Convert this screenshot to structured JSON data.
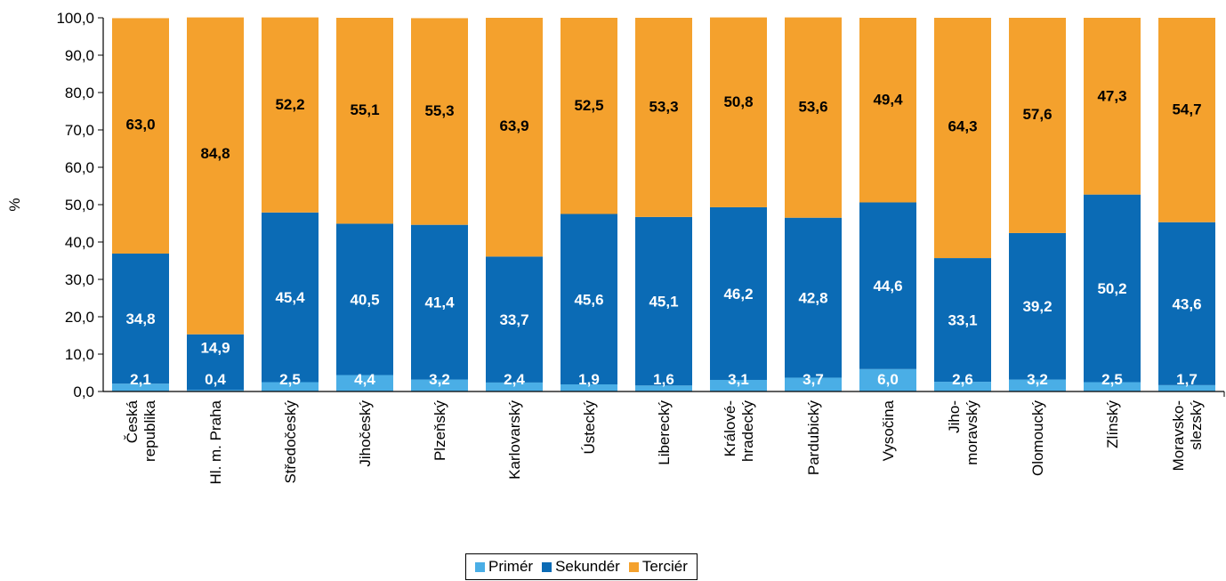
{
  "chart_data": {
    "type": "bar",
    "stacked": true,
    "ylabel": "%",
    "ylim": [
      0,
      100
    ],
    "yticks": [
      "0,0",
      "10,0",
      "20,0",
      "30,0",
      "40,0",
      "50,0",
      "60,0",
      "70,0",
      "80,0",
      "90,0",
      "100,0"
    ],
    "categories": [
      [
        "Česká",
        "republika"
      ],
      [
        "Hl. m. Praha"
      ],
      [
        "Středočeský"
      ],
      [
        "Jihočeský"
      ],
      [
        "Plzeňský"
      ],
      [
        "Karlovarský"
      ],
      [
        "Ústecký"
      ],
      [
        "Liberecký"
      ],
      [
        "Králové-",
        "hradecký"
      ],
      [
        "Pardubický"
      ],
      [
        "Vysočina"
      ],
      [
        "Jiho-",
        "moravský"
      ],
      [
        "Olomoucký"
      ],
      [
        "Zlínský"
      ],
      [
        "Moravsko-",
        "slezský"
      ]
    ],
    "series": [
      {
        "name": "Primér",
        "color": "#4aaee6",
        "label_color": "#ffffff",
        "values": [
          2.1,
          0.4,
          2.5,
          4.4,
          3.2,
          2.4,
          1.9,
          1.6,
          3.1,
          3.7,
          6.0,
          2.6,
          3.2,
          2.5,
          1.7
        ],
        "labels": [
          "2,1",
          "0,4",
          "2,5",
          "4,4",
          "3,2",
          "2,4",
          "1,9",
          "1,6",
          "3,1",
          "3,7",
          "6,0",
          "2,6",
          "3,2",
          "2,5",
          "1,7"
        ]
      },
      {
        "name": "Sekundér",
        "color": "#0b6bb5",
        "label_color": "#ffffff",
        "values": [
          34.8,
          14.9,
          45.4,
          40.5,
          41.4,
          33.7,
          45.6,
          45.1,
          46.2,
          42.8,
          44.6,
          33.1,
          39.2,
          50.2,
          43.6
        ],
        "labels": [
          "34,8",
          "14,9",
          "45,4",
          "40,5",
          "41,4",
          "33,7",
          "45,6",
          "45,1",
          "46,2",
          "42,8",
          "44,6",
          "33,1",
          "39,2",
          "50,2",
          "43,6"
        ]
      },
      {
        "name": "Terciér",
        "color": "#f4a12d",
        "label_color": "#000000",
        "values": [
          63.0,
          84.8,
          52.2,
          55.1,
          55.3,
          63.9,
          52.5,
          53.3,
          50.8,
          53.6,
          49.4,
          64.3,
          57.6,
          47.3,
          54.7
        ],
        "labels": [
          "63,0",
          "84,8",
          "52,2",
          "55,1",
          "55,3",
          "63,9",
          "52,5",
          "53,3",
          "50,8",
          "53,6",
          "49,4",
          "64,3",
          "57,6",
          "47,3",
          "54,7"
        ]
      }
    ],
    "legend_position": "bottom"
  }
}
